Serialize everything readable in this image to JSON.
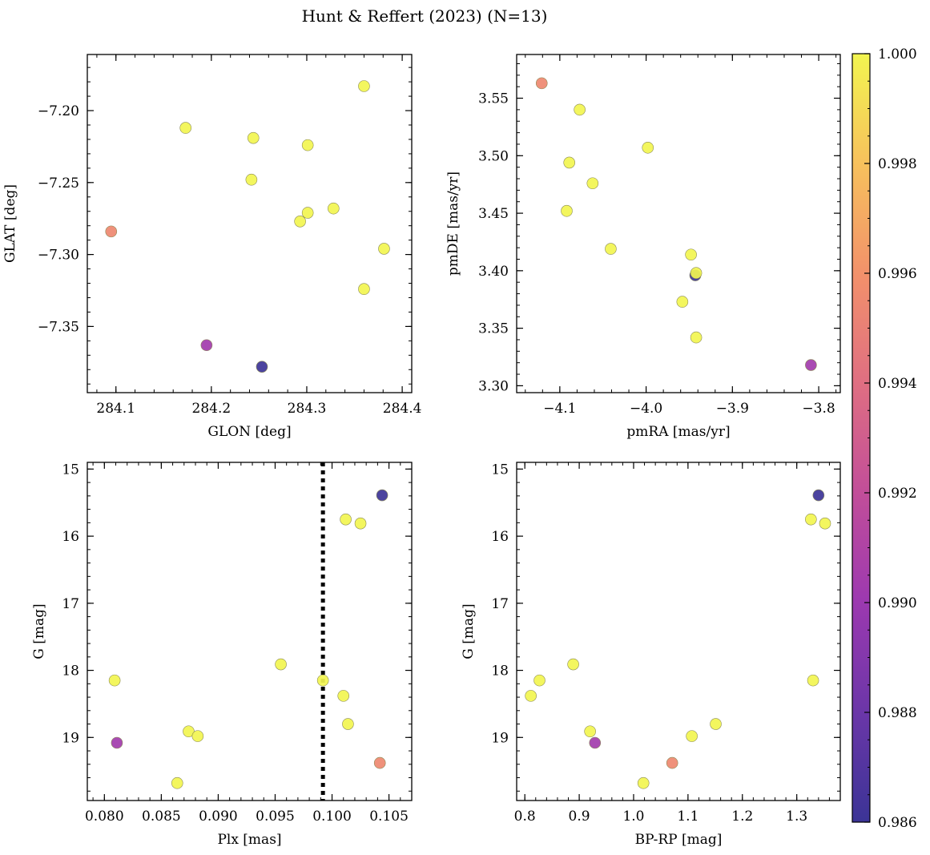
{
  "title": "Hunt & Reffert (2023) (N=13)",
  "colorbar": {
    "cmap": "plasma",
    "vmin": 0.986,
    "vmax": 1.0,
    "ticks": [
      0.986,
      0.988,
      0.99,
      0.992,
      0.994,
      0.996,
      0.998,
      1.0
    ],
    "tick_labels": [
      "0.986",
      "0.988",
      "0.990",
      "0.992",
      "0.994",
      "0.996",
      "0.998",
      "1.000"
    ]
  },
  "chart_data": [
    {
      "type": "scatter",
      "xlabel": "GLON [deg]",
      "ylabel": "GLAT [deg]",
      "xlim": [
        284.07,
        284.41
      ],
      "ylim": [
        -7.396,
        -7.161
      ],
      "y_inverted": false,
      "xticks": [
        284.1,
        284.2,
        284.3,
        284.4
      ],
      "xtick_labels": [
        "284.1",
        "284.2",
        "284.3",
        "284.4"
      ],
      "yticks": [
        -7.35,
        -7.3,
        -7.25,
        -7.2
      ],
      "ytick_labels": [
        "−7.35",
        "−7.30",
        "−7.25",
        "−7.20"
      ],
      "points": [
        {
          "x": 284.173,
          "y": -7.212,
          "c": 1.0
        },
        {
          "x": 284.244,
          "y": -7.219,
          "c": 1.0
        },
        {
          "x": 284.301,
          "y": -7.224,
          "c": 1.0
        },
        {
          "x": 284.36,
          "y": -7.183,
          "c": 1.0
        },
        {
          "x": 284.242,
          "y": -7.248,
          "c": 1.0
        },
        {
          "x": 284.328,
          "y": -7.268,
          "c": 1.0
        },
        {
          "x": 284.301,
          "y": -7.271,
          "c": 1.0
        },
        {
          "x": 284.293,
          "y": -7.277,
          "c": 1.0
        },
        {
          "x": 284.381,
          "y": -7.296,
          "c": 1.0
        },
        {
          "x": 284.36,
          "y": -7.324,
          "c": 1.0
        },
        {
          "x": 284.095,
          "y": -7.284,
          "c": 0.9955
        },
        {
          "x": 284.195,
          "y": -7.363,
          "c": 0.9903
        },
        {
          "x": 284.253,
          "y": -7.378,
          "c": 0.9861
        }
      ]
    },
    {
      "type": "scatter",
      "xlabel": "pmRA [mas/yr]",
      "ylabel": "pmDE [mas/yr]",
      "xlim": [
        -4.15,
        -3.775
      ],
      "ylim": [
        3.294,
        3.588
      ],
      "y_inverted": false,
      "xticks": [
        -4.1,
        -4.0,
        -3.9,
        -3.8
      ],
      "xtick_labels": [
        "−4.1",
        "−4.0",
        "−3.9",
        "−3.8"
      ],
      "yticks": [
        3.3,
        3.35,
        3.4,
        3.45,
        3.5,
        3.55
      ],
      "ytick_labels": [
        "3.30",
        "3.35",
        "3.40",
        "3.45",
        "3.50",
        "3.55"
      ],
      "points": [
        {
          "x": -3.943,
          "y": 3.396,
          "c": 0.9861
        },
        {
          "x": -4.121,
          "y": 3.563,
          "c": 0.9955
        },
        {
          "x": -3.809,
          "y": 3.318,
          "c": 0.9903
        },
        {
          "x": -4.077,
          "y": 3.54,
          "c": 1.0
        },
        {
          "x": -3.998,
          "y": 3.507,
          "c": 1.0
        },
        {
          "x": -4.089,
          "y": 3.494,
          "c": 1.0
        },
        {
          "x": -4.062,
          "y": 3.476,
          "c": 1.0
        },
        {
          "x": -4.092,
          "y": 3.452,
          "c": 1.0
        },
        {
          "x": -4.041,
          "y": 3.419,
          "c": 1.0
        },
        {
          "x": -3.948,
          "y": 3.414,
          "c": 1.0
        },
        {
          "x": -3.942,
          "y": 3.398,
          "c": 1.0
        },
        {
          "x": -3.958,
          "y": 3.373,
          "c": 1.0
        },
        {
          "x": -3.942,
          "y": 3.342,
          "c": 1.0
        }
      ]
    },
    {
      "type": "scatter",
      "xlabel": "Plx [mas]",
      "ylabel": "G [mag]",
      "xlim": [
        0.0785,
        0.107
      ],
      "ylim": [
        19.94,
        14.9
      ],
      "y_inverted": true,
      "xticks": [
        0.08,
        0.085,
        0.09,
        0.095,
        0.1,
        0.105
      ],
      "xtick_labels": [
        "0.080",
        "0.085",
        "0.090",
        "0.095",
        "0.100",
        "0.105"
      ],
      "yticks": [
        15,
        16,
        17,
        18,
        19
      ],
      "ytick_labels": [
        "15",
        "16",
        "17",
        "18",
        "19"
      ],
      "vline": 0.0992,
      "points": [
        {
          "x": 0.1044,
          "y": 15.39,
          "c": 0.9861
        },
        {
          "x": 0.1012,
          "y": 15.75,
          "c": 1.0
        },
        {
          "x": 0.1025,
          "y": 15.81,
          "c": 1.0
        },
        {
          "x": 0.0955,
          "y": 17.91,
          "c": 1.0
        },
        {
          "x": 0.0809,
          "y": 18.15,
          "c": 1.0
        },
        {
          "x": 0.0992,
          "y": 18.15,
          "c": 1.0
        },
        {
          "x": 0.101,
          "y": 18.38,
          "c": 1.0
        },
        {
          "x": 0.1014,
          "y": 18.8,
          "c": 1.0
        },
        {
          "x": 0.0874,
          "y": 18.91,
          "c": 1.0
        },
        {
          "x": 0.0882,
          "y": 18.98,
          "c": 1.0
        },
        {
          "x": 0.0811,
          "y": 19.08,
          "c": 0.9903
        },
        {
          "x": 0.1042,
          "y": 19.38,
          "c": 0.9955
        },
        {
          "x": 0.0864,
          "y": 19.68,
          "c": 1.0
        }
      ]
    },
    {
      "type": "scatter",
      "xlabel": "BP-RP [mag]",
      "ylabel": "G [mag]",
      "xlim": [
        0.785,
        1.38
      ],
      "ylim": [
        19.94,
        14.9
      ],
      "y_inverted": true,
      "xticks": [
        0.8,
        0.9,
        1.0,
        1.1,
        1.2,
        1.3
      ],
      "xtick_labels": [
        "0.8",
        "0.9",
        "1.0",
        "1.1",
        "1.2",
        "1.3"
      ],
      "yticks": [
        15,
        16,
        17,
        18,
        19
      ],
      "ytick_labels": [
        "15",
        "16",
        "17",
        "18",
        "19"
      ],
      "points": [
        {
          "x": 1.34,
          "y": 15.39,
          "c": 0.9861
        },
        {
          "x": 1.326,
          "y": 15.75,
          "c": 1.0
        },
        {
          "x": 1.352,
          "y": 15.81,
          "c": 1.0
        },
        {
          "x": 0.889,
          "y": 17.91,
          "c": 1.0
        },
        {
          "x": 0.827,
          "y": 18.15,
          "c": 1.0
        },
        {
          "x": 1.33,
          "y": 18.15,
          "c": 1.0
        },
        {
          "x": 0.811,
          "y": 18.38,
          "c": 1.0
        },
        {
          "x": 1.151,
          "y": 18.8,
          "c": 1.0
        },
        {
          "x": 0.92,
          "y": 18.91,
          "c": 1.0
        },
        {
          "x": 1.107,
          "y": 18.98,
          "c": 1.0
        },
        {
          "x": 0.929,
          "y": 19.08,
          "c": 0.9903
        },
        {
          "x": 1.071,
          "y": 19.38,
          "c": 0.9955
        },
        {
          "x": 1.018,
          "y": 19.68,
          "c": 1.0
        }
      ]
    }
  ]
}
